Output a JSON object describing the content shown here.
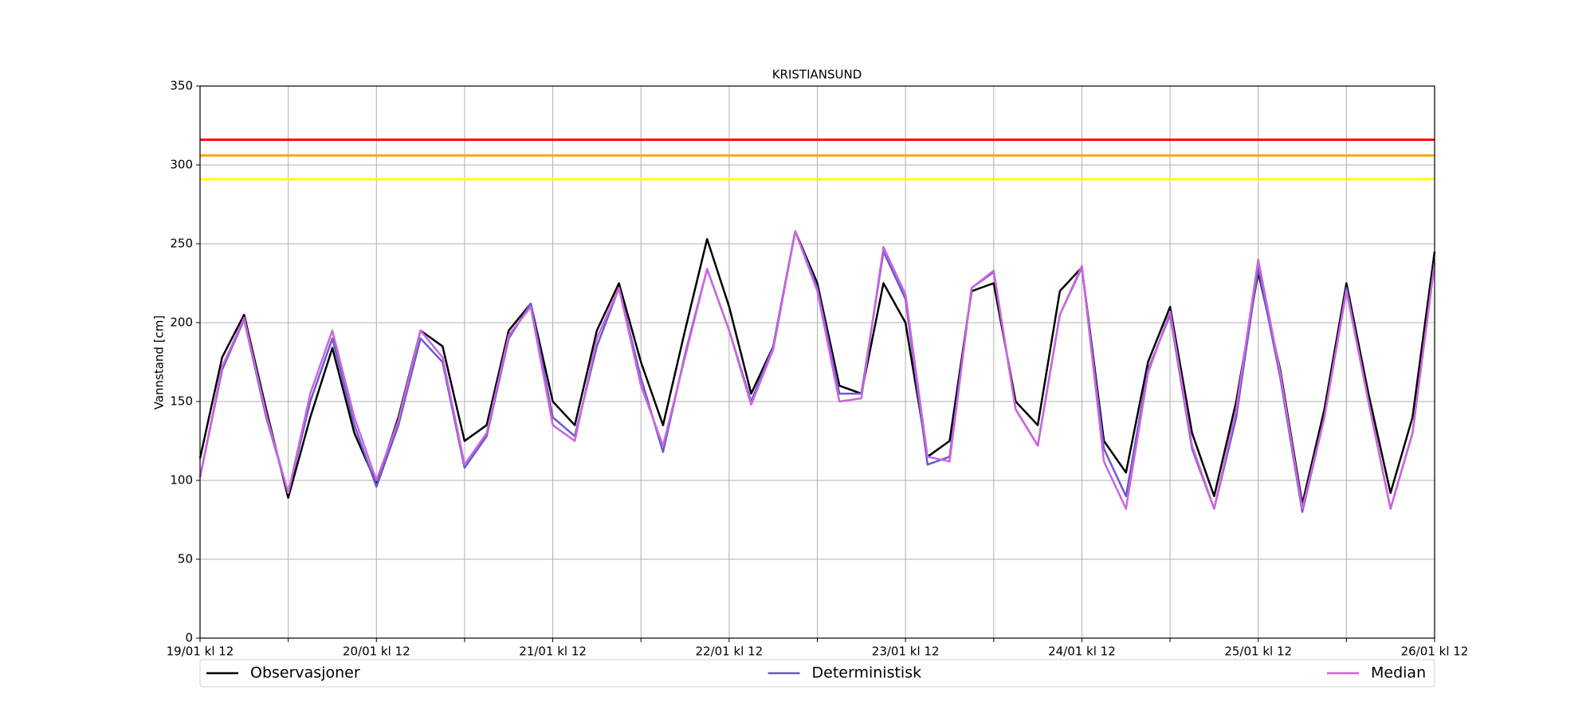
{
  "chart_data": {
    "type": "line",
    "title": "KRISTIANSUND",
    "ylabel": "Vannstand [cm]",
    "x": [
      "19/01 kl 12",
      "19/01 kl 15",
      "19/01 kl 18",
      "19/01 kl 21",
      "20/01 kl 00",
      "20/01 kl 03",
      "20/01 kl 06",
      "20/01 kl 09",
      "20/01 kl 12",
      "20/01 kl 15",
      "20/01 kl 18",
      "20/01 kl 21",
      "21/01 kl 00",
      "21/01 kl 03",
      "21/01 kl 06",
      "21/01 kl 09",
      "21/01 kl 12",
      "21/01 kl 15",
      "21/01 kl 18",
      "21/01 kl 21",
      "22/01 kl 00",
      "22/01 kl 03",
      "22/01 kl 06",
      "22/01 kl 09",
      "22/01 kl 12",
      "22/01 kl 15",
      "22/01 kl 18",
      "22/01 kl 21",
      "23/01 kl 00",
      "23/01 kl 03",
      "23/01 kl 06",
      "23/01 kl 09",
      "23/01 kl 12",
      "23/01 kl 15",
      "23/01 kl 18",
      "23/01 kl 21",
      "24/01 kl 00",
      "24/01 kl 03",
      "24/01 kl 06",
      "24/01 kl 09",
      "24/01 kl 12",
      "24/01 kl 15",
      "24/01 kl 18",
      "24/01 kl 21",
      "25/01 kl 00",
      "25/01 kl 03",
      "25/01 kl 06",
      "25/01 kl 09",
      "25/01 kl 12",
      "25/01 kl 15",
      "25/01 kl 18",
      "25/01 kl 21",
      "26/01 kl 00",
      "26/01 kl 03",
      "26/01 kl 06",
      "26/01 kl 09",
      "26/01 kl 12"
    ],
    "series": [
      {
        "name": "Observasjoner",
        "color": "#000000",
        "values": [
          114,
          178,
          205,
          145,
          89,
          140,
          184,
          130,
          98,
          140,
          195,
          185,
          125,
          135,
          195,
          212,
          150,
          135,
          195,
          225,
          175,
          135,
          195,
          253,
          210,
          155,
          185,
          258,
          225,
          160,
          155,
          225,
          200,
          115,
          125,
          220,
          225,
          150,
          135,
          220,
          235,
          125,
          105,
          175,
          210,
          130,
          90,
          150,
          232,
          170,
          85,
          145,
          225,
          155,
          92,
          140,
          245
        ]
      },
      {
        "name": "Deterministisk",
        "color": "#6a5acd",
        "values": [
          102,
          170,
          202,
          140,
          92,
          150,
          190,
          135,
          96,
          135,
          190,
          175,
          108,
          128,
          190,
          212,
          140,
          128,
          185,
          222,
          165,
          118,
          180,
          234,
          195,
          150,
          185,
          258,
          222,
          155,
          155,
          245,
          215,
          110,
          115,
          222,
          232,
          145,
          122,
          205,
          235,
          120,
          90,
          170,
          205,
          120,
          82,
          140,
          235,
          165,
          80,
          140,
          222,
          150,
          82,
          130,
          238
        ]
      },
      {
        "name": "Median",
        "color": "#cc66dd",
        "values": [
          102,
          172,
          203,
          142,
          92,
          155,
          195,
          140,
          100,
          138,
          195,
          178,
          110,
          130,
          192,
          210,
          135,
          125,
          190,
          222,
          160,
          122,
          178,
          234,
          195,
          148,
          183,
          258,
          220,
          150,
          152,
          248,
          218,
          115,
          112,
          222,
          233,
          145,
          122,
          205,
          236,
          112,
          82,
          168,
          207,
          122,
          82,
          145,
          240,
          168,
          82,
          140,
          220,
          150,
          82,
          130,
          238
        ]
      }
    ],
    "thresholds": [
      {
        "value": 316,
        "color": "#ff0000"
      },
      {
        "value": 306,
        "color": "#ffa500"
      },
      {
        "value": 291,
        "color": "#ffff00"
      }
    ],
    "xlim": [
      "19/01 kl 12",
      "26/01 kl 12"
    ],
    "xticks": [
      "19/01 kl 12",
      {
        "value": "20/01 kl 00",
        "label": null
      },
      "20/01 kl 12",
      {
        "value": "21/01 kl 00",
        "label": null
      },
      "21/01 kl 12",
      {
        "value": "22/01 kl 00",
        "label": null
      },
      "22/01 kl 12",
      {
        "value": "23/01 kl 00",
        "label": null
      },
      "23/01 kl 12",
      {
        "value": "24/01 kl 00",
        "label": null
      },
      "24/01 kl 12",
      {
        "value": "25/01 kl 00",
        "label": null
      },
      "25/01 kl 12",
      {
        "value": "26/01 kl 00",
        "label": null
      },
      "26/01 kl 12"
    ],
    "ylim": [
      0,
      350
    ],
    "yticks": [
      0,
      50,
      100,
      150,
      200,
      250,
      300,
      350
    ],
    "grid": true
  }
}
